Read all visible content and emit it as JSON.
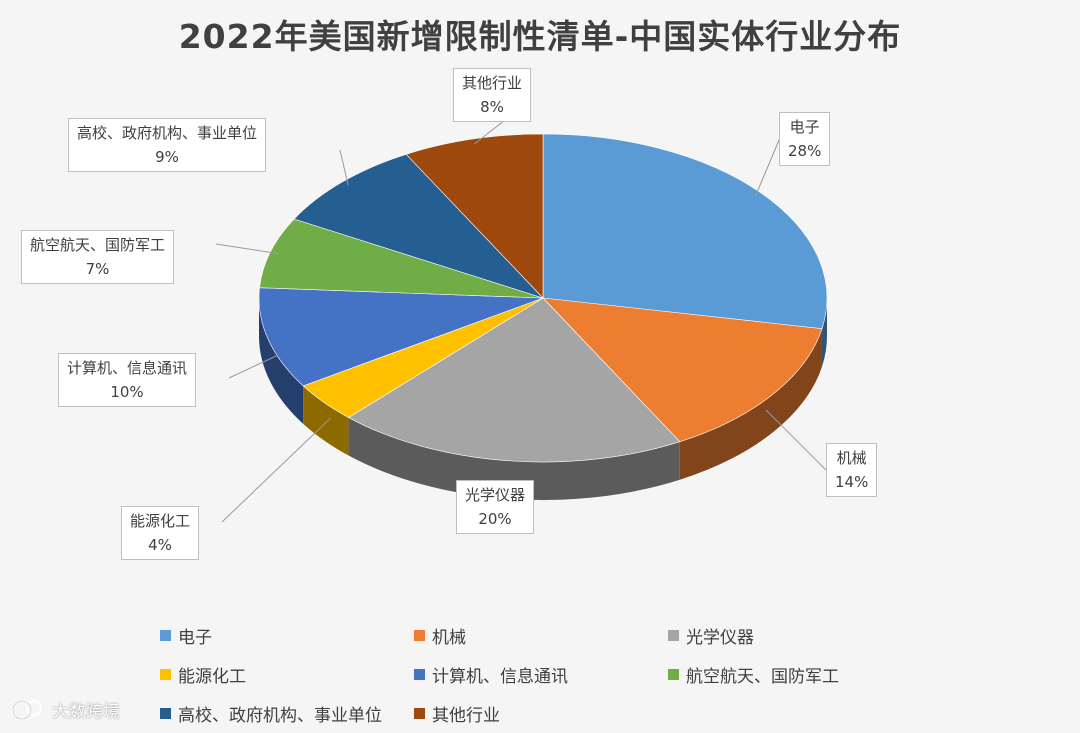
{
  "title": "2022年美国新增限制性清单-中国实体行业分布",
  "chart_data": {
    "type": "pie",
    "title": "2022年美国新增限制性清单-中国实体行业分布",
    "legend_position": "bottom",
    "slices": [
      {
        "label": "电子",
        "value": 28,
        "pct_label": "28%",
        "color": "#5b9bd5"
      },
      {
        "label": "机械",
        "value": 14,
        "pct_label": "14%",
        "color": "#ed7d31"
      },
      {
        "label": "光学仪器",
        "value": 20,
        "pct_label": "20%",
        "color": "#a5a5a5"
      },
      {
        "label": "能源化工",
        "value": 4,
        "pct_label": "4%",
        "color": "#ffc000"
      },
      {
        "label": "计算机、信息通讯",
        "value": 10,
        "pct_label": "10%",
        "color": "#4472c4"
      },
      {
        "label": "航空航天、国防军工",
        "value": 7,
        "pct_label": "7%",
        "color": "#70ad47"
      },
      {
        "label": "高校、政府机构、事业单位",
        "value": 9,
        "pct_label": "9%",
        "color": "#255e91"
      },
      {
        "label": "其他行业",
        "value": 8,
        "pct_label": "8%",
        "color": "#9e480e"
      }
    ]
  },
  "watermark": {
    "text": "大数跨境"
  }
}
